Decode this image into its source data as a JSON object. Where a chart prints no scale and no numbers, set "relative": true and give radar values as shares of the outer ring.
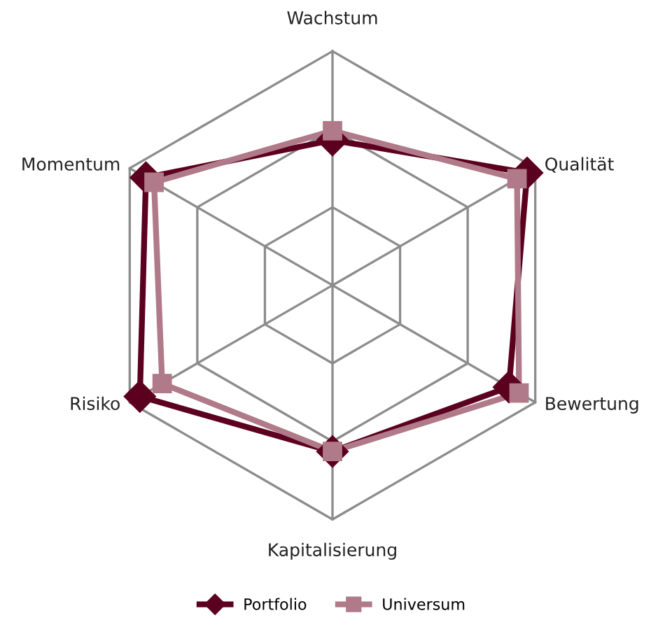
{
  "chart_data": {
    "type": "radar",
    "relative": true,
    "grid": true,
    "legend": "bottom",
    "categories": [
      "Wachstum",
      "Qualität",
      "Bewertung",
      "Kapitalisierung",
      "Risiko",
      "Momentum"
    ],
    "series": [
      {
        "name": "Portfolio",
        "color": "#5c0020",
        "marker": "diamond",
        "values": [
          0.62,
          0.96,
          0.87,
          0.71,
          0.95,
          0.92
        ]
      },
      {
        "name": "Universum",
        "color": "#b07a8a",
        "marker": "square",
        "values": [
          0.66,
          0.91,
          0.92,
          0.71,
          0.84,
          0.88
        ]
      }
    ]
  }
}
